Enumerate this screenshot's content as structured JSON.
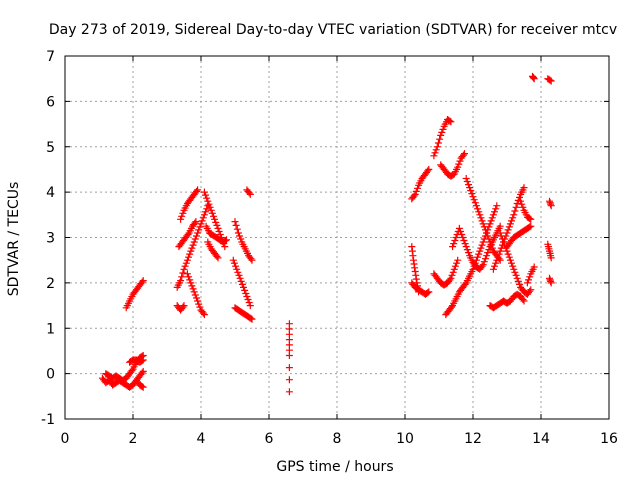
{
  "chart_data": {
    "type": "scatter",
    "title": "Day 273 of 2019, Sidereal Day-to-day VTEC variation (SDTVAR) for receiver mtcv",
    "xlabel": "GPS time / hours",
    "ylabel": "SDTVAR / TECUs",
    "xlim": [
      0,
      16
    ],
    "ylim": [
      -1,
      7
    ],
    "xticks": [
      "0",
      "2",
      "4",
      "6",
      "8",
      "10",
      "12",
      "14",
      "16"
    ],
    "yticks": [
      "-1",
      "0",
      "1",
      "2",
      "3",
      "4",
      "5",
      "6",
      "7"
    ],
    "grid": true,
    "marker": "+",
    "series": [
      {
        "color": "#ff0000",
        "segments": [
          [
            [
              1.1,
              -0.1
            ],
            [
              1.2,
              -0.2
            ],
            [
              1.3,
              -0.15
            ],
            [
              1.4,
              -0.25
            ],
            [
              1.5,
              -0.2
            ],
            [
              1.6,
              -0.15
            ],
            [
              1.7,
              -0.2
            ],
            [
              1.8,
              -0.25
            ],
            [
              1.9,
              -0.3
            ],
            [
              2.0,
              -0.25
            ],
            [
              2.1,
              -0.15
            ],
            [
              2.2,
              -0.05
            ],
            [
              2.3,
              0.05
            ]
          ],
          [
            [
              1.2,
              0.0
            ],
            [
              1.3,
              -0.05
            ],
            [
              1.4,
              -0.1
            ],
            [
              1.5,
              -0.05
            ],
            [
              1.6,
              -0.1
            ],
            [
              1.7,
              -0.15
            ],
            [
              1.8,
              -0.1
            ],
            [
              1.9,
              0.0
            ],
            [
              2.0,
              0.1
            ],
            [
              2.1,
              0.25
            ],
            [
              2.2,
              0.35
            ],
            [
              2.3,
              0.4
            ]
          ],
          [
            [
              1.9,
              0.25
            ],
            [
              2.0,
              0.3
            ],
            [
              2.1,
              0.3
            ],
            [
              2.2,
              0.25
            ],
            [
              2.3,
              0.3
            ]
          ],
          [
            [
              2.1,
              -0.15
            ],
            [
              2.2,
              -0.25
            ],
            [
              2.3,
              -0.3
            ]
          ],
          [
            [
              1.8,
              1.45
            ],
            [
              1.9,
              1.6
            ],
            [
              2.0,
              1.75
            ],
            [
              2.1,
              1.85
            ],
            [
              2.2,
              1.95
            ],
            [
              2.3,
              2.05
            ]
          ],
          [
            [
              3.3,
              1.5
            ],
            [
              3.4,
              1.4
            ],
            [
              3.5,
              1.5
            ]
          ],
          [
            [
              3.3,
              1.9
            ],
            [
              3.4,
              2.05
            ],
            [
              3.5,
              2.3
            ],
            [
              3.6,
              2.5
            ],
            [
              3.7,
              2.7
            ],
            [
              3.8,
              2.9
            ],
            [
              3.9,
              3.1
            ],
            [
              4.0,
              3.3
            ],
            [
              4.1,
              3.5
            ],
            [
              4.2,
              3.7
            ]
          ],
          [
            [
              3.35,
              2.8
            ],
            [
              3.45,
              2.9
            ],
            [
              3.55,
              3.0
            ],
            [
              3.65,
              3.1
            ],
            [
              3.75,
              3.25
            ],
            [
              3.85,
              3.35
            ]
          ],
          [
            [
              3.4,
              3.4
            ],
            [
              3.5,
              3.6
            ],
            [
              3.6,
              3.75
            ],
            [
              3.7,
              3.85
            ],
            [
              3.8,
              3.95
            ],
            [
              3.9,
              4.05
            ]
          ],
          [
            [
              4.1,
              4.0
            ],
            [
              4.2,
              3.8
            ],
            [
              4.3,
              3.6
            ],
            [
              4.4,
              3.4
            ],
            [
              4.5,
              3.2
            ],
            [
              4.6,
              3.0
            ],
            [
              4.7,
              2.8
            ]
          ],
          [
            [
              4.15,
              3.25
            ],
            [
              4.25,
              3.1
            ],
            [
              4.35,
              3.05
            ],
            [
              4.45,
              3.0
            ],
            [
              4.55,
              2.95
            ],
            [
              4.65,
              2.9
            ],
            [
              4.75,
              2.95
            ]
          ],
          [
            [
              4.2,
              2.9
            ],
            [
              4.3,
              2.75
            ],
            [
              4.4,
              2.65
            ],
            [
              4.5,
              2.55
            ]
          ],
          [
            [
              3.6,
              2.2
            ],
            [
              3.7,
              2.0
            ],
            [
              3.8,
              1.8
            ],
            [
              3.9,
              1.6
            ],
            [
              4.0,
              1.4
            ],
            [
              4.1,
              1.3
            ]
          ],
          [
            [
              5.0,
              3.35
            ],
            [
              5.1,
              3.1
            ],
            [
              5.2,
              2.9
            ],
            [
              5.3,
              2.75
            ],
            [
              5.4,
              2.6
            ],
            [
              5.5,
              2.5
            ]
          ],
          [
            [
              4.95,
              2.5
            ],
            [
              5.05,
              2.3
            ],
            [
              5.15,
              2.1
            ],
            [
              5.25,
              1.9
            ],
            [
              5.35,
              1.7
            ],
            [
              5.45,
              1.5
            ]
          ],
          [
            [
              5.0,
              1.45
            ],
            [
              5.1,
              1.4
            ],
            [
              5.2,
              1.35
            ],
            [
              5.3,
              1.3
            ],
            [
              5.4,
              1.25
            ],
            [
              5.5,
              1.2
            ]
          ],
          [
            [
              5.35,
              4.05
            ],
            [
              5.45,
              3.95
            ]
          ],
          [
            [
              6.6,
              1.1
            ],
            [
              6.6,
              0.75
            ],
            [
              6.6,
              0.4
            ],
            [
              6.6,
              -0.4
            ]
          ],
          [
            [
              10.2,
              2.0
            ],
            [
              10.3,
              1.9
            ],
            [
              10.4,
              1.85
            ],
            [
              10.5,
              1.8
            ],
            [
              10.6,
              1.75
            ],
            [
              10.7,
              1.8
            ]
          ],
          [
            [
              10.2,
              2.8
            ],
            [
              10.25,
              2.5
            ],
            [
              10.3,
              2.25
            ],
            [
              10.35,
              2.0
            ],
            [
              10.4,
              1.8
            ]
          ],
          [
            [
              10.2,
              3.85
            ],
            [
              10.3,
              3.95
            ],
            [
              10.4,
              4.15
            ],
            [
              10.5,
              4.3
            ],
            [
              10.6,
              4.4
            ],
            [
              10.7,
              4.5
            ]
          ],
          [
            [
              10.85,
              4.8
            ],
            [
              10.95,
              5.0
            ],
            [
              11.05,
              5.25
            ],
            [
              11.15,
              5.45
            ],
            [
              11.25,
              5.6
            ],
            [
              11.35,
              5.55
            ]
          ],
          [
            [
              11.05,
              4.6
            ],
            [
              11.15,
              4.5
            ],
            [
              11.25,
              4.4
            ],
            [
              11.35,
              4.35
            ],
            [
              11.45,
              4.4
            ],
            [
              11.55,
              4.55
            ],
            [
              11.65,
              4.75
            ],
            [
              11.75,
              4.85
            ]
          ],
          [
            [
              10.85,
              2.2
            ],
            [
              10.95,
              2.1
            ],
            [
              11.05,
              2.0
            ],
            [
              11.15,
              1.95
            ],
            [
              11.25,
              2.0
            ],
            [
              11.35,
              2.1
            ],
            [
              11.45,
              2.3
            ],
            [
              11.55,
              2.5
            ]
          ],
          [
            [
              11.2,
              1.3
            ],
            [
              11.3,
              1.4
            ],
            [
              11.4,
              1.5
            ],
            [
              11.5,
              1.65
            ],
            [
              11.6,
              1.8
            ],
            [
              11.7,
              1.9
            ],
            [
              11.8,
              2.0
            ],
            [
              11.9,
              2.15
            ],
            [
              12.0,
              2.3
            ],
            [
              12.1,
              2.5
            ],
            [
              12.2,
              2.7
            ],
            [
              12.3,
              2.9
            ],
            [
              12.4,
              3.1
            ],
            [
              12.5,
              3.3
            ],
            [
              12.6,
              3.5
            ],
            [
              12.7,
              3.7
            ]
          ],
          [
            [
              11.4,
              2.8
            ],
            [
              11.5,
              3.0
            ],
            [
              11.6,
              3.2
            ],
            [
              11.7,
              3.0
            ],
            [
              11.8,
              2.8
            ],
            [
              11.9,
              2.6
            ],
            [
              12.0,
              2.45
            ],
            [
              12.1,
              2.35
            ],
            [
              12.2,
              2.3
            ],
            [
              12.3,
              2.4
            ],
            [
              12.4,
              2.6
            ],
            [
              12.5,
              2.8
            ],
            [
              12.6,
              2.95
            ],
            [
              12.7,
              3.1
            ],
            [
              12.8,
              3.25
            ]
          ],
          [
            [
              11.8,
              4.3
            ],
            [
              11.9,
              4.1
            ],
            [
              12.0,
              3.9
            ],
            [
              12.1,
              3.7
            ],
            [
              12.2,
              3.5
            ],
            [
              12.3,
              3.3
            ],
            [
              12.4,
              3.1
            ],
            [
              12.5,
              2.9
            ],
            [
              12.6,
              2.7
            ],
            [
              12.7,
              2.6
            ],
            [
              12.8,
              2.5
            ]
          ],
          [
            [
              12.5,
              1.5
            ],
            [
              12.6,
              1.45
            ],
            [
              12.7,
              1.5
            ],
            [
              12.8,
              1.55
            ],
            [
              12.9,
              1.6
            ],
            [
              13.0,
              1.55
            ],
            [
              13.1,
              1.6
            ],
            [
              13.2,
              1.7
            ],
            [
              13.3,
              1.75
            ],
            [
              13.4,
              1.7
            ],
            [
              13.5,
              1.6
            ]
          ],
          [
            [
              12.8,
              3.1
            ],
            [
              12.9,
              2.9
            ],
            [
              13.0,
              2.7
            ],
            [
              13.1,
              2.5
            ],
            [
              13.2,
              2.3
            ],
            [
              13.3,
              2.1
            ],
            [
              13.4,
              1.9
            ],
            [
              13.5,
              1.8
            ],
            [
              13.6,
              1.75
            ],
            [
              13.7,
              1.85
            ]
          ],
          [
            [
              12.6,
              2.3
            ],
            [
              12.7,
              2.5
            ],
            [
              12.8,
              2.7
            ],
            [
              12.9,
              2.9
            ],
            [
              13.0,
              3.1
            ],
            [
              13.1,
              3.3
            ],
            [
              13.2,
              3.5
            ],
            [
              13.3,
              3.75
            ],
            [
              13.4,
              3.95
            ],
            [
              13.5,
              4.1
            ]
          ],
          [
            [
              13.0,
              2.8
            ],
            [
              13.1,
              2.9
            ],
            [
              13.2,
              3.0
            ],
            [
              13.3,
              3.05
            ],
            [
              13.4,
              3.1
            ],
            [
              13.5,
              3.15
            ],
            [
              13.6,
              3.2
            ],
            [
              13.7,
              3.25
            ]
          ],
          [
            [
              13.4,
              3.8
            ],
            [
              13.5,
              3.6
            ],
            [
              13.6,
              3.45
            ],
            [
              13.7,
              3.4
            ]
          ],
          [
            [
              13.6,
              2.0
            ],
            [
              13.7,
              2.2
            ],
            [
              13.8,
              2.35
            ]
          ],
          [
            [
              13.75,
              6.55
            ],
            [
              13.8,
              6.5
            ]
          ],
          [
            [
              14.2,
              6.5
            ],
            [
              14.3,
              6.45
            ]
          ],
          [
            [
              14.25,
              3.8
            ],
            [
              14.3,
              3.7
            ]
          ],
          [
            [
              14.2,
              2.85
            ],
            [
              14.25,
              2.7
            ],
            [
              14.3,
              2.55
            ]
          ],
          [
            [
              14.25,
              2.1
            ],
            [
              14.3,
              2.0
            ]
          ]
        ]
      }
    ]
  }
}
